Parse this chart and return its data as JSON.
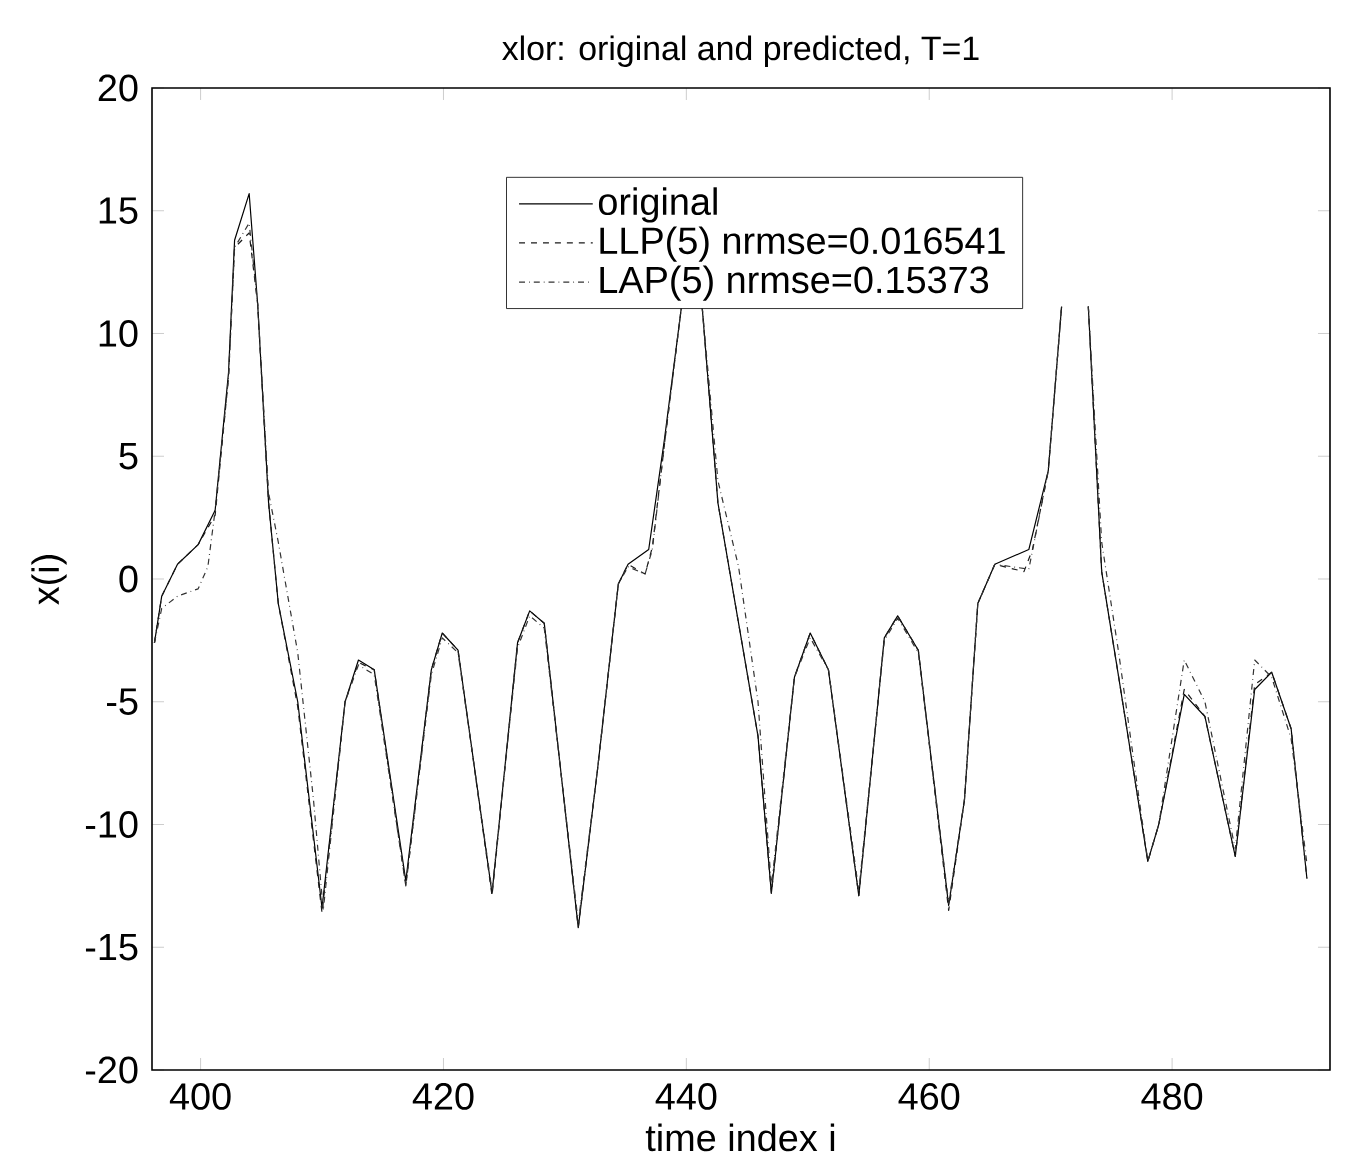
{
  "chart_data": {
    "type": "line",
    "title": "xlor: original and predicted, T=1",
    "xlabel": "time index i",
    "ylabel": "x(i)",
    "xlim": [
      396,
      493
    ],
    "xticks": [
      400,
      420,
      440,
      460,
      480
    ],
    "ylim": [
      -20,
      20
    ],
    "yticks": [
      -20,
      -15,
      -10,
      -5,
      0,
      5,
      10,
      15,
      20
    ],
    "legend": "top",
    "series": [
      {
        "name": "original",
        "color": "#000000",
        "line_style": "solid",
        "x": [
          396.2,
          396.8,
          398.1,
          399.8,
          401.2,
          402.3,
          402.8,
          404,
          404.7,
          405.6,
          406.4,
          408,
          410,
          411.9,
          413,
          414.3,
          416.9,
          419,
          419.9,
          421.2,
          424,
          426.1,
          427.1,
          428.3,
          431.1,
          432.7,
          434.4,
          435.2,
          436.9,
          438.2,
          439.6,
          440.5,
          441.3,
          442.6,
          444.3,
          445.9,
          447,
          448.9,
          450.2,
          451.7,
          454.2,
          456.3,
          457.4,
          459.1,
          461.6,
          462.9,
          464,
          465.4,
          468.2,
          469.8,
          470.9,
          472,
          473.1,
          474.2,
          475.6,
          478,
          478.9,
          481,
          482.7,
          485.2,
          486.8,
          488.2,
          489.8,
          491.1
        ],
        "values": [
          -2.6,
          -0.7,
          0.6,
          1.4,
          2.8,
          8.4,
          13.8,
          15.7,
          11.2,
          3.1,
          -1,
          -5,
          -13.4,
          -5,
          -3.3,
          -3.7,
          -12.3,
          -3.7,
          -2.2,
          -2.9,
          -12.8,
          -2.6,
          -1.3,
          -1.8,
          -14.2,
          -7.7,
          -0.2,
          0.6,
          1.2,
          5.7,
          11.1,
          null,
          11.1,
          3.1,
          -1.8,
          -6.4,
          -12.8,
          -4,
          -2.2,
          -3.7,
          -12.9,
          -2.4,
          -1.5,
          -2.9,
          -13.3,
          -9,
          -1,
          0.6,
          1.2,
          4.4,
          11.1,
          null,
          11.1,
          0.3,
          -4,
          -11.5,
          -10,
          -4.7,
          -5.6,
          -11.3,
          -4.5,
          -3.8,
          -6.1,
          -12.2
        ]
      },
      {
        "name": "LLP(5) nrmse=0.016541",
        "color": "#1a1a1a",
        "line_style": "dashed",
        "x": [
          396.2,
          396.8,
          398.1,
          399.8,
          401.2,
          402.3,
          402.8,
          404,
          404.7,
          405.6,
          406.4,
          408,
          410,
          411.9,
          413,
          414.3,
          416.9,
          419,
          419.9,
          421.2,
          424,
          426.1,
          427.1,
          428.3,
          431.1,
          432.7,
          434.4,
          435.2,
          436.6,
          437.2,
          438.2,
          439.6,
          440.5,
          441.3,
          442.6,
          444.3,
          445.9,
          447,
          448.9,
          450.2,
          451.7,
          454.2,
          456.3,
          457.4,
          459.1,
          461.6,
          462.9,
          464,
          465.4,
          467.8,
          468.5,
          469.8,
          470.9,
          472,
          473.1,
          474.2,
          475.6,
          478,
          478.9,
          481,
          482.7,
          485.2,
          486.8,
          488.2,
          489.8,
          491.1
        ],
        "values": [
          -2.6,
          -0.7,
          0.6,
          1.4,
          2.6,
          8.2,
          13.5,
          14.1,
          11.2,
          3.1,
          -1,
          -5.2,
          -13.6,
          -5,
          -3.4,
          -3.7,
          -12.5,
          -3.7,
          -2.2,
          -2.9,
          -12.9,
          -2.6,
          -1.3,
          -1.8,
          -14.2,
          -7.7,
          -0.2,
          0.6,
          0.2,
          1.3,
          5.5,
          11.1,
          null,
          11.1,
          3.1,
          -1.8,
          -6.4,
          -12.8,
          -4,
          -2.2,
          -3.7,
          -12.9,
          -2.4,
          -1.5,
          -2.9,
          -13.5,
          -9,
          -1,
          0.6,
          0.3,
          1.2,
          4.4,
          11.1,
          null,
          11.1,
          0.3,
          -4,
          -11.5,
          -10,
          -4.5,
          -5.6,
          -11.3,
          -4.3,
          -3.8,
          -6.1,
          -12.2
        ]
      },
      {
        "name": "LAP(5) nrmse=0.15373",
        "color": "#333333",
        "line_style": "dashdot",
        "x": [
          396.2,
          396.8,
          398.1,
          399.8,
          400.6,
          401.2,
          402.3,
          402.8,
          404,
          404.7,
          405.6,
          406.4,
          408,
          409.3,
          410.1,
          411.9,
          413,
          414.3,
          416.9,
          419,
          419.9,
          421.2,
          424,
          426.1,
          427.1,
          428.3,
          431.1,
          432.7,
          434.4,
          435.2,
          436.6,
          437.2,
          438.2,
          439.6,
          440.5,
          441.3,
          442.6,
          444.3,
          445.9,
          447,
          448.9,
          450.2,
          451.7,
          454.2,
          456.3,
          457.4,
          459.1,
          461.6,
          462.9,
          464,
          465.4,
          468.2,
          469.8,
          470.9,
          472,
          473.1,
          474.2,
          475.6,
          478,
          478.9,
          481,
          482.7,
          485.2,
          486.8,
          488.2,
          489.8,
          491.1
        ],
        "values": [
          -2.6,
          -1.2,
          -0.7,
          -0.4,
          0.5,
          2.8,
          8.2,
          13.5,
          14.5,
          11.2,
          3.5,
          1.5,
          -3,
          -9,
          -13.5,
          -5,
          -3.5,
          -3.9,
          -12.5,
          -3.9,
          -2.4,
          -3,
          -12.7,
          -2.8,
          -1.5,
          -2,
          -14,
          -7.7,
          -0.2,
          0.5,
          0.2,
          1.2,
          5.5,
          11.1,
          null,
          11.1,
          4,
          0.5,
          -5,
          -12.5,
          -4,
          -2.4,
          -3.7,
          -12.7,
          -2.5,
          -1.6,
          -3,
          -13.2,
          -9,
          -1,
          0.6,
          0.4,
          4.4,
          11.1,
          null,
          11.1,
          1.5,
          -3,
          -11.5,
          -10,
          -3.3,
          -5,
          -11,
          -3.3,
          -4,
          -6.5,
          -11.6
        ]
      }
    ]
  }
}
